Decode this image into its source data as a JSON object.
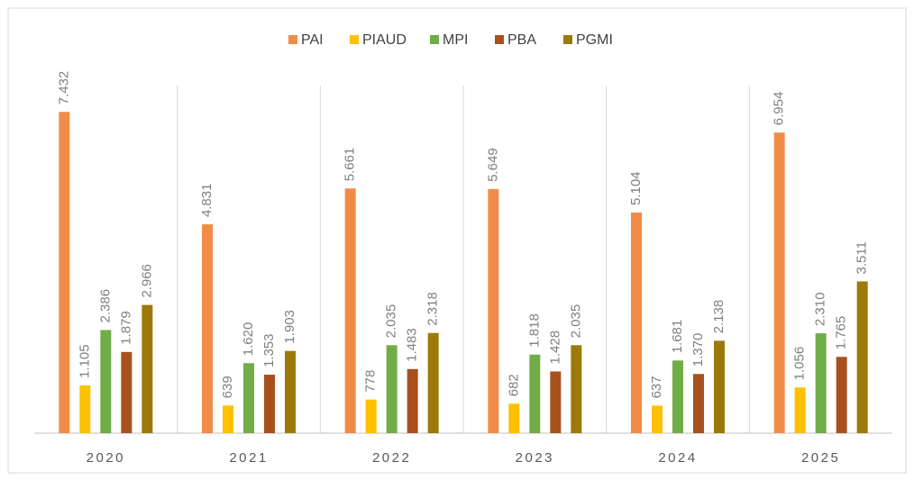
{
  "chart_data": {
    "type": "bar",
    "categories": [
      "2020",
      "2021",
      "2022",
      "2023",
      "2024",
      "2025"
    ],
    "series": [
      {
        "name": "PAI",
        "color": "#f08c48",
        "values": [
          7432,
          4831,
          5661,
          5649,
          5104,
          6954
        ],
        "value_labels": [
          "7.432",
          "4.831",
          "5.661",
          "5.649",
          "5.104",
          "6.954"
        ]
      },
      {
        "name": "PIAUD",
        "color": "#ffc000",
        "values": [
          1105,
          639,
          778,
          682,
          637,
          1056
        ],
        "value_labels": [
          "1.105",
          "639",
          "778",
          "682",
          "637",
          "1.056"
        ]
      },
      {
        "name": "MPI",
        "color": "#70ad47",
        "values": [
          2386,
          1620,
          2035,
          1818,
          1681,
          2310
        ],
        "value_labels": [
          "2.386",
          "1.620",
          "2.035",
          "1.818",
          "1.681",
          "2.310"
        ]
      },
      {
        "name": "PBA",
        "color": "#a9501f",
        "values": [
          1879,
          1353,
          1483,
          1428,
          1370,
          1765
        ],
        "value_labels": [
          "1.879",
          "1.353",
          "1.483",
          "1.428",
          "1.370",
          "1.765"
        ]
      },
      {
        "name": "PGMI",
        "color": "#9c7a0a",
        "values": [
          2966,
          1903,
          2318,
          2035,
          2138,
          3511
        ],
        "value_labels": [
          "2.966",
          "1.903",
          "2.318",
          "2.035",
          "2.138",
          "3.511"
        ]
      }
    ]
  }
}
